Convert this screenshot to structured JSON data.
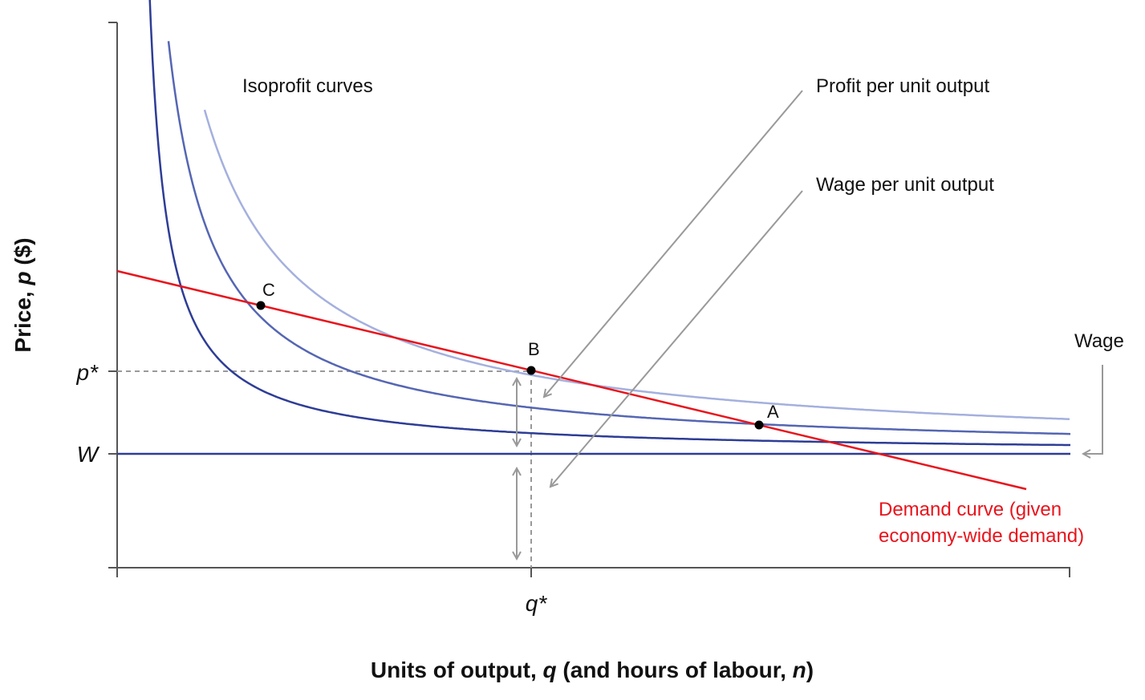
{
  "figure": {
    "y_axis_title": {
      "prefix": "Price, ",
      "var": "p",
      "suffix": " ($)"
    },
    "x_axis_title": {
      "prefix": "Units of output, ",
      "var1": "q",
      "middle": " (and hours of labour, ",
      "var2": "n",
      "suffix": ")"
    },
    "y_ticks": [
      {
        "label": "p*",
        "value": "p_star"
      },
      {
        "label": "W",
        "value": "wage"
      }
    ],
    "x_ticks": [
      {
        "label": "q*",
        "value": "q_star"
      }
    ],
    "annotations": {
      "isoprofit": "Isoprofit curves",
      "profit_per_unit": "Profit per unit output",
      "wage_per_unit": "Wage per unit output",
      "wage": "Wage",
      "demand_line1": "Demand curve (given",
      "demand_line2": "economy-wide demand)"
    },
    "points": [
      {
        "id": "A",
        "label": "A"
      },
      {
        "id": "B",
        "label": "B"
      },
      {
        "id": "C",
        "label": "C"
      }
    ],
    "colors": {
      "demand": "#e8141c",
      "isoprofit_dark": "#2e3d96",
      "isoprofit_mid": "#5566b3",
      "isoprofit_light": "#a4b0de",
      "wage_line": "#2e3d96",
      "guide": "#999999",
      "axis": "#555555",
      "arrow": "#999999",
      "text": "#111111",
      "demand_text": "#e8141c"
    },
    "icons": {
      "double_arrow": "double-headed-arrow-icon",
      "pointer_arrow": "arrow-icon"
    }
  }
}
